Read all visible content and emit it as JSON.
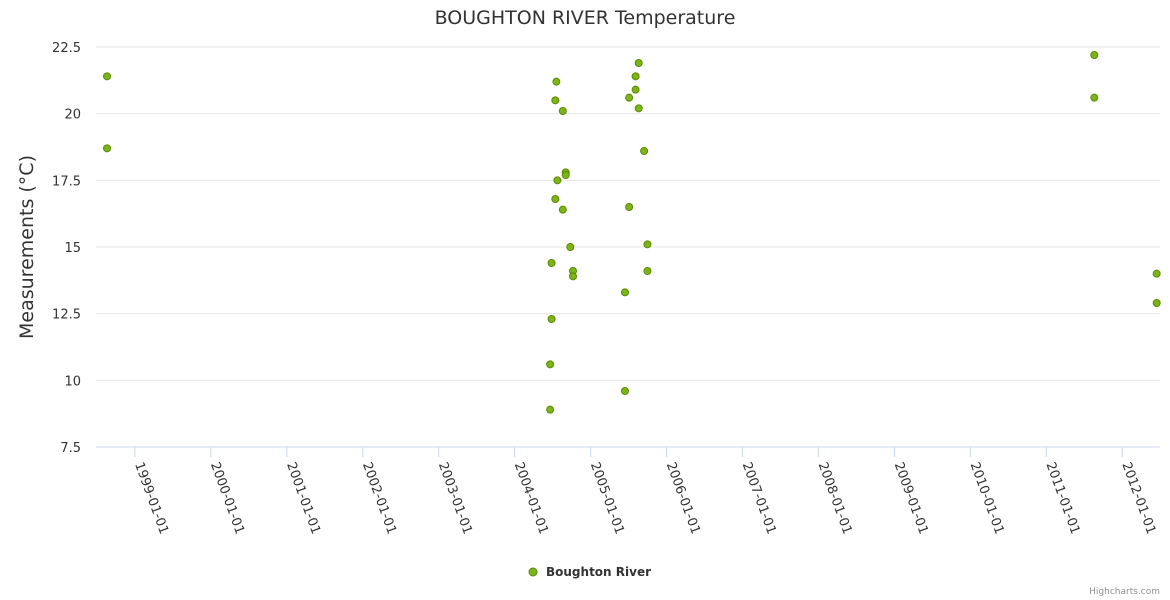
{
  "chart_data": {
    "type": "scatter",
    "title": "BOUGHTON RIVER Temperature",
    "ylabel": "Measurements (°C)",
    "xlabel": "",
    "x_is_date": true,
    "xlim": [
      "1998-06-28",
      "2012-07-01"
    ],
    "ylim": [
      7.5,
      22.5
    ],
    "y_ticks": [
      7.5,
      10,
      12.5,
      15,
      17.5,
      20,
      22.5
    ],
    "x_ticks": [
      "1999-01-01",
      "2000-01-01",
      "2001-01-01",
      "2002-01-01",
      "2003-01-01",
      "2004-01-01",
      "2005-01-01",
      "2006-01-01",
      "2007-01-01",
      "2008-01-01",
      "2009-01-01",
      "2010-01-01",
      "2011-01-01",
      "2012-01-01"
    ],
    "grid": "horizontal",
    "legend_position": "bottom-center",
    "series": [
      {
        "name": "Boughton River",
        "color": "#7cb518",
        "marker_border": "#5a8a00",
        "points": [
          [
            "1998-08-20",
            21.4
          ],
          [
            "1998-08-20",
            18.7
          ],
          [
            "2004-06-20",
            10.6
          ],
          [
            "2004-06-20",
            8.9
          ],
          [
            "2004-06-27",
            14.4
          ],
          [
            "2004-06-27",
            12.3
          ],
          [
            "2004-07-15",
            20.5
          ],
          [
            "2004-07-20",
            21.2
          ],
          [
            "2004-07-15",
            16.8
          ],
          [
            "2004-07-25",
            17.5
          ],
          [
            "2004-08-20",
            20.1
          ],
          [
            "2004-08-20",
            16.4
          ],
          [
            "2004-09-03",
            17.8
          ],
          [
            "2004-09-03",
            17.7
          ],
          [
            "2004-09-25",
            15.0
          ],
          [
            "2004-10-08",
            14.1
          ],
          [
            "2004-10-08",
            13.9
          ],
          [
            "2005-06-15",
            13.3
          ],
          [
            "2005-06-15",
            9.6
          ],
          [
            "2005-07-05",
            20.6
          ],
          [
            "2005-07-05",
            16.5
          ],
          [
            "2005-08-05",
            21.4
          ],
          [
            "2005-08-05",
            20.9
          ],
          [
            "2005-08-20",
            21.9
          ],
          [
            "2005-08-20",
            20.2
          ],
          [
            "2005-09-15",
            18.6
          ],
          [
            "2005-10-01",
            15.1
          ],
          [
            "2005-10-01",
            14.1
          ],
          [
            "2011-08-20",
            22.2
          ],
          [
            "2011-08-20",
            20.6
          ],
          [
            "2012-06-15",
            14.0
          ],
          [
            "2012-06-15",
            12.9
          ]
        ]
      }
    ]
  },
  "credits": "Highcharts.com"
}
